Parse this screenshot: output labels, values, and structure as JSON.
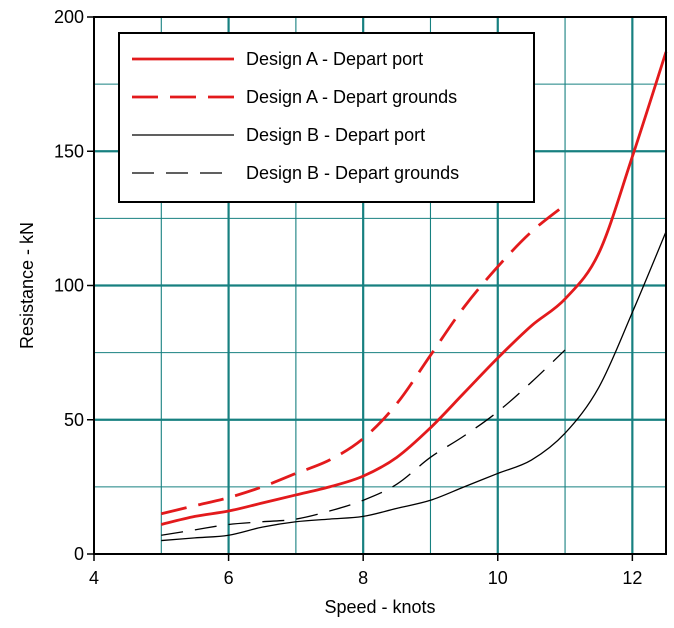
{
  "chart_data": {
    "type": "line",
    "xlabel": "Speed - knots",
    "ylabel": "Resistance - kN",
    "xlim": [
      4,
      12.5
    ],
    "ylim": [
      0,
      200
    ],
    "x_ticks": [
      4,
      6,
      8,
      10,
      12
    ],
    "y_ticks": [
      0,
      50,
      100,
      150,
      200
    ],
    "x_tick_labels": [
      "4",
      "6",
      "8",
      "10",
      "12"
    ],
    "y_tick_labels": [
      "0",
      "50",
      "100",
      "150",
      "200"
    ],
    "grid": true,
    "legend_position": "top-left",
    "colors": {
      "grid": "#178080",
      "designA": "#e31a1c",
      "designB": "#000000"
    },
    "series": [
      {
        "name": "Design A - Depart port",
        "color": "#e31a1c",
        "style": "solid",
        "weight": "thick",
        "x": [
          5,
          5.5,
          6,
          6.5,
          7,
          7.5,
          8,
          8.5,
          9,
          9.5,
          10,
          10.5,
          11,
          11.5,
          12,
          12.5
        ],
        "y": [
          11,
          14,
          16,
          19,
          22,
          25,
          29,
          36,
          47,
          60,
          73,
          85,
          95,
          112,
          148,
          187
        ]
      },
      {
        "name": "Design A - Depart grounds",
        "color": "#e31a1c",
        "style": "dashed",
        "weight": "thick",
        "x": [
          5,
          5.5,
          6,
          6.5,
          7,
          7.5,
          8,
          8.5,
          9,
          9.5,
          10,
          10.5,
          11
        ],
        "y": [
          15,
          18,
          21,
          25,
          30,
          35,
          43,
          56,
          74,
          92,
          107,
          120,
          130
        ]
      },
      {
        "name": "Design B - Depart port",
        "color": "#000000",
        "style": "solid",
        "weight": "thin",
        "x": [
          5,
          5.5,
          6,
          6.5,
          7,
          7.5,
          8,
          8.5,
          9,
          9.5,
          10,
          10.5,
          11,
          11.5,
          12,
          12.5
        ],
        "y": [
          5,
          6,
          7,
          10,
          12,
          13,
          14,
          17,
          20,
          25,
          30,
          35,
          45,
          62,
          90,
          120
        ]
      },
      {
        "name": "Design B - Depart grounds",
        "color": "#000000",
        "style": "dashed",
        "weight": "thin",
        "x": [
          5,
          5.5,
          6,
          6.5,
          7,
          7.5,
          8,
          8.5,
          9,
          9.5,
          10,
          10.5,
          11
        ],
        "y": [
          7,
          9,
          11,
          12,
          13,
          16,
          20,
          26,
          36,
          44,
          53,
          64,
          76
        ]
      }
    ]
  }
}
